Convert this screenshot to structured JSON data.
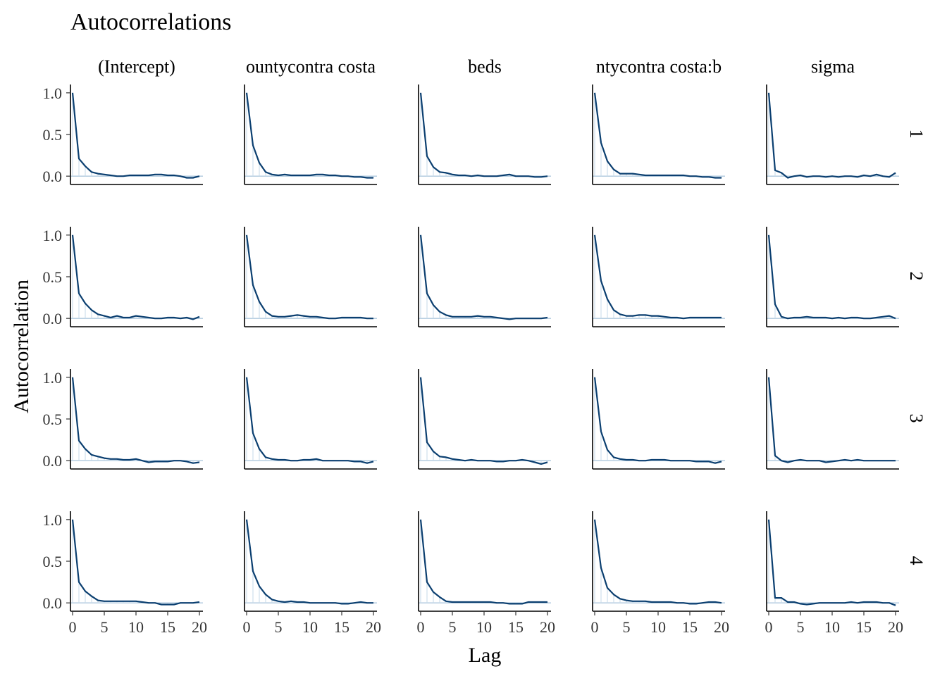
{
  "chart_data": {
    "type": "line",
    "title": "Autocorrelations",
    "xlabel": "Lag",
    "ylabel": "Autocorrelation",
    "xlim": [
      0,
      20
    ],
    "ylim": [
      -0.1,
      1.1
    ],
    "x_ticks": [
      "0",
      "5",
      "10",
      "15",
      "20"
    ],
    "y_ticks": [
      "0.0",
      "0.5",
      "1.0"
    ],
    "column_labels": [
      "(Intercept)",
      "countycontra costa",
      "beds",
      "countycontra costa:beds",
      "sigma"
    ],
    "column_labels_visible": [
      "(Intercept)",
      "ountycontra costa",
      "beds",
      "ntycontra costa:b",
      "sigma"
    ],
    "row_labels": [
      "1",
      "2",
      "3",
      "4"
    ],
    "lags": [
      0,
      1,
      2,
      3,
      4,
      5,
      6,
      7,
      8,
      9,
      10,
      11,
      12,
      13,
      14,
      15,
      16,
      17,
      18,
      19,
      20
    ],
    "colors": {
      "line": "#0b3f70",
      "reference": "#8fb3d0",
      "drop": "#c6d9e8",
      "axis": "#000000",
      "text": "#333333"
    },
    "panels": [
      [
        {
          "values": [
            1.0,
            0.21,
            0.12,
            0.05,
            0.03,
            0.02,
            0.01,
            0.0,
            0.0,
            0.01,
            0.01,
            0.01,
            0.01,
            0.02,
            0.02,
            0.01,
            0.01,
            0.0,
            -0.02,
            -0.02,
            0.0
          ]
        },
        {
          "values": [
            1.0,
            0.37,
            0.16,
            0.05,
            0.02,
            0.01,
            0.02,
            0.01,
            0.01,
            0.01,
            0.01,
            0.02,
            0.02,
            0.01,
            0.01,
            0.0,
            0.0,
            -0.01,
            -0.01,
            -0.02,
            -0.02
          ]
        },
        {
          "values": [
            1.0,
            0.24,
            0.11,
            0.05,
            0.04,
            0.02,
            0.01,
            0.01,
            0.0,
            0.01,
            0.0,
            0.0,
            0.0,
            0.01,
            0.02,
            0.0,
            0.0,
            0.0,
            -0.01,
            -0.01,
            0.0
          ]
        },
        {
          "values": [
            1.0,
            0.4,
            0.18,
            0.08,
            0.03,
            0.03,
            0.03,
            0.02,
            0.01,
            0.01,
            0.01,
            0.01,
            0.01,
            0.01,
            0.01,
            0.0,
            0.0,
            -0.01,
            -0.01,
            -0.02,
            -0.02
          ]
        },
        {
          "values": [
            1.0,
            0.07,
            0.04,
            -0.02,
            0.0,
            0.01,
            -0.01,
            0.0,
            0.0,
            -0.01,
            0.0,
            -0.01,
            0.0,
            0.0,
            -0.01,
            0.01,
            0.0,
            0.02,
            0.0,
            -0.01,
            0.04
          ]
        }
      ],
      [
        {
          "values": [
            1.0,
            0.3,
            0.18,
            0.1,
            0.05,
            0.03,
            0.01,
            0.03,
            0.01,
            0.01,
            0.03,
            0.02,
            0.01,
            0.0,
            0.0,
            0.01,
            0.01,
            0.0,
            0.01,
            -0.01,
            0.02
          ]
        },
        {
          "values": [
            1.0,
            0.4,
            0.2,
            0.08,
            0.03,
            0.02,
            0.02,
            0.03,
            0.04,
            0.03,
            0.02,
            0.02,
            0.01,
            0.0,
            0.0,
            0.01,
            0.01,
            0.01,
            0.01,
            0.0,
            0.0
          ]
        },
        {
          "values": [
            1.0,
            0.3,
            0.16,
            0.08,
            0.04,
            0.02,
            0.02,
            0.02,
            0.02,
            0.03,
            0.02,
            0.02,
            0.01,
            0.0,
            -0.01,
            0.0,
            0.0,
            0.0,
            0.0,
            0.0,
            0.01
          ]
        },
        {
          "values": [
            1.0,
            0.45,
            0.23,
            0.1,
            0.05,
            0.03,
            0.03,
            0.04,
            0.04,
            0.03,
            0.03,
            0.02,
            0.01,
            0.01,
            0.0,
            0.01,
            0.01,
            0.01,
            0.01,
            0.01,
            0.01
          ]
        },
        {
          "values": [
            1.0,
            0.17,
            0.02,
            0.0,
            0.01,
            0.01,
            0.02,
            0.01,
            0.01,
            0.01,
            0.0,
            0.01,
            0.0,
            0.01,
            0.01,
            0.0,
            0.0,
            0.01,
            0.02,
            0.03,
            0.0
          ]
        }
      ],
      [
        {
          "values": [
            1.0,
            0.24,
            0.14,
            0.07,
            0.05,
            0.03,
            0.02,
            0.02,
            0.01,
            0.01,
            0.02,
            0.0,
            -0.02,
            -0.01,
            -0.01,
            -0.01,
            0.0,
            0.0,
            -0.01,
            -0.03,
            -0.02
          ]
        },
        {
          "values": [
            1.0,
            0.33,
            0.14,
            0.04,
            0.02,
            0.01,
            0.01,
            0.0,
            0.0,
            0.01,
            0.01,
            0.02,
            0.0,
            0.0,
            0.0,
            0.0,
            0.0,
            -0.01,
            -0.01,
            -0.03,
            -0.01
          ]
        },
        {
          "values": [
            1.0,
            0.22,
            0.11,
            0.05,
            0.04,
            0.02,
            0.01,
            0.0,
            0.01,
            0.0,
            0.0,
            0.0,
            -0.01,
            -0.01,
            0.0,
            0.0,
            0.01,
            0.0,
            -0.02,
            -0.04,
            -0.02
          ]
        },
        {
          "values": [
            1.0,
            0.35,
            0.13,
            0.04,
            0.02,
            0.01,
            0.01,
            0.0,
            0.0,
            0.01,
            0.01,
            0.01,
            0.0,
            0.0,
            0.0,
            0.0,
            -0.01,
            -0.01,
            -0.01,
            -0.03,
            -0.01
          ]
        },
        {
          "values": [
            1.0,
            0.06,
            0.0,
            -0.02,
            0.0,
            0.01,
            0.0,
            0.0,
            0.0,
            -0.02,
            -0.01,
            0.0,
            0.01,
            0.0,
            0.01,
            0.0,
            0.0,
            0.0,
            0.0,
            0.0,
            0.0
          ]
        }
      ],
      [
        {
          "values": [
            1.0,
            0.25,
            0.14,
            0.08,
            0.03,
            0.02,
            0.02,
            0.02,
            0.02,
            0.02,
            0.02,
            0.01,
            0.0,
            0.0,
            -0.02,
            -0.02,
            -0.02,
            0.0,
            0.0,
            0.0,
            0.01
          ]
        },
        {
          "values": [
            1.0,
            0.38,
            0.2,
            0.1,
            0.04,
            0.02,
            0.01,
            0.02,
            0.01,
            0.01,
            0.0,
            0.0,
            0.0,
            0.0,
            0.0,
            -0.01,
            -0.01,
            0.0,
            0.01,
            0.0,
            0.0
          ]
        },
        {
          "values": [
            1.0,
            0.25,
            0.13,
            0.07,
            0.02,
            0.01,
            0.01,
            0.01,
            0.01,
            0.01,
            0.01,
            0.01,
            0.0,
            0.0,
            -0.01,
            -0.01,
            -0.01,
            0.01,
            0.01,
            0.01,
            0.01
          ]
        },
        {
          "values": [
            1.0,
            0.42,
            0.18,
            0.1,
            0.05,
            0.03,
            0.02,
            0.02,
            0.02,
            0.01,
            0.01,
            0.01,
            0.01,
            0.0,
            0.0,
            -0.01,
            -0.01,
            0.0,
            0.01,
            0.01,
            0.0
          ]
        },
        {
          "values": [
            1.0,
            0.06,
            0.06,
            0.01,
            0.01,
            -0.01,
            -0.02,
            -0.01,
            0.0,
            0.0,
            0.0,
            0.0,
            0.0,
            0.01,
            0.0,
            0.01,
            0.01,
            0.01,
            0.0,
            0.0,
            -0.03
          ]
        }
      ]
    ]
  }
}
